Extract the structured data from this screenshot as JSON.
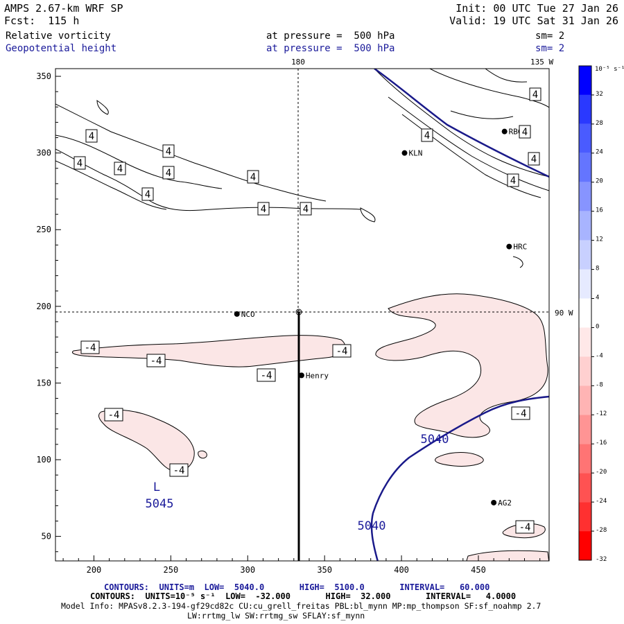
{
  "header": {
    "model": "AMPS 2.67-km WRF SP",
    "forecast": "Fcst:  115 h",
    "init": "Init: 00 UTC Tue 27 Jan 26",
    "valid": "Valid: 19 UTC Sat 31 Jan 26",
    "field1": "Relative vorticity",
    "field2": "Geopotential height",
    "level1": "at pressure =  500 hPa",
    "level2": "at pressure =  500 hPa",
    "sm1": "sm= 2",
    "sm2": "sm= 2"
  },
  "grid_labels": {
    "lon_top": "180",
    "lon_right_top": "135 W",
    "lon_right": "90 W"
  },
  "axes": {
    "x_ticks": [
      "200",
      "250",
      "300",
      "350",
      "400",
      "450"
    ],
    "y_ticks": [
      "350",
      "300",
      "250",
      "200",
      "150",
      "100",
      "50"
    ],
    "x_range": [
      175,
      496
    ],
    "y_range": [
      34,
      355
    ]
  },
  "stations": [
    {
      "name": "RBG",
      "x": 467,
      "y": 314
    },
    {
      "name": "KLN",
      "x": 402,
      "y": 300
    },
    {
      "name": "HRC",
      "x": 470,
      "y": 239
    },
    {
      "name": "NCO",
      "x": 293,
      "y": 195
    },
    {
      "name": "Henry",
      "x": 335,
      "y": 155
    },
    {
      "name": "AG2",
      "x": 460,
      "y": 72
    }
  ],
  "contour_labels": {
    "vort_pos": "4",
    "vort_neg": "-4",
    "height_low_marker": "L",
    "height_low_value": "5045",
    "height_5040": "5040"
  },
  "colorbar": {
    "unit_label": "10⁻⁵ s⁻¹",
    "ticks": [
      "32",
      "28",
      "24",
      "20",
      "16",
      "12",
      "8",
      "4",
      "0",
      "-4",
      "-8",
      "-12",
      "-16",
      "-20",
      "-24",
      "-28",
      "-32"
    ],
    "colors": [
      "#0000ff",
      "#2a39ff",
      "#4a5bff",
      "#6475ff",
      "#8794ff",
      "#a8b4ff",
      "#c8d0ff",
      "#e6eaff",
      "#ffffff",
      "#ffe8e8",
      "#ffd0d0",
      "#ffb4b4",
      "#ff9494",
      "#ff7474",
      "#ff5252",
      "#ff3030",
      "#ff0000"
    ]
  },
  "colors": {
    "height_contour": "#1a1a8a",
    "neg_fill": "#fbe6e6",
    "label_blue": "#1a1a9a"
  },
  "footer": {
    "line1": "CONTOURS:  UNITS=m  LOW=  5040.0       HIGH=  5100.0       INTERVAL=   60.000",
    "line2": "CONTOURS:  UNITS=10⁻⁵ s⁻¹  LOW=  -32.000       HIGH=  32.000       INTERVAL=   4.0000",
    "line3": "Model Info: MPASv8.2.3-194-gf29cd82c CU:cu_grell_freitas PBL:bl_mynn MP:mp_thompson SF:sf_noahmp 2.7",
    "line4": "LW:rrtmg_lw SW:rrtmg_sw SFLAY:sf_mynn"
  }
}
